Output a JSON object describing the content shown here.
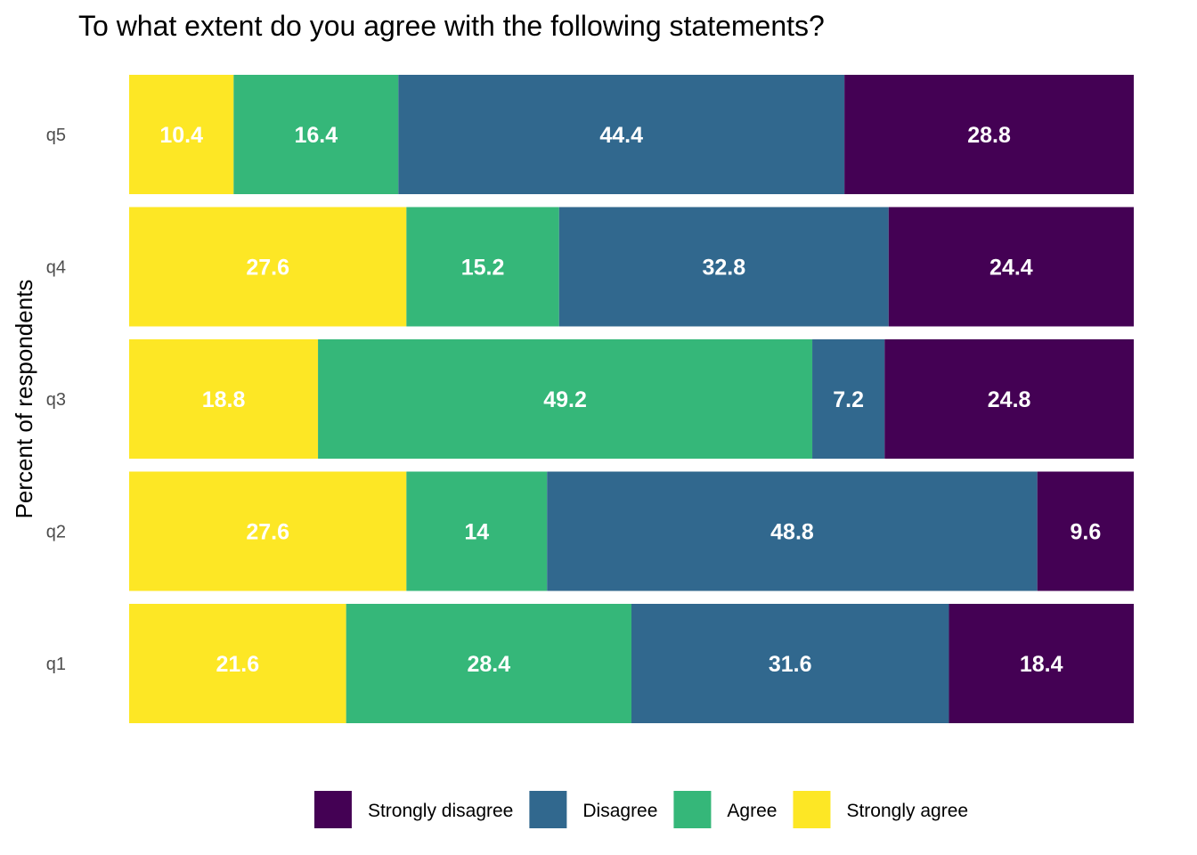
{
  "chart_data": {
    "type": "bar",
    "orientation": "horizontal",
    "stacked": true,
    "title": "To what extent do you agree with the following statements?",
    "xlabel": "",
    "ylabel": "Percent of respondents",
    "categories": [
      "q5",
      "q4",
      "q3",
      "q2",
      "q1"
    ],
    "xlim": [
      0,
      100
    ],
    "grid": false,
    "legend_position": "bottom",
    "series": [
      {
        "name": "Strongly agree",
        "color": "#FDE725",
        "values": [
          10.4,
          27.6,
          18.8,
          27.6,
          21.6
        ]
      },
      {
        "name": "Agree",
        "color": "#35B779",
        "values": [
          16.4,
          15.2,
          49.2,
          14,
          28.4
        ]
      },
      {
        "name": "Disagree",
        "color": "#31688E",
        "values": [
          44.4,
          32.8,
          7.2,
          48.8,
          31.6
        ]
      },
      {
        "name": "Strongly disagree",
        "color": "#440154",
        "values": [
          28.8,
          24.4,
          24.8,
          9.6,
          18.4
        ]
      }
    ],
    "legend_order": [
      "Strongly disagree",
      "Disagree",
      "Agree",
      "Strongly agree"
    ]
  }
}
